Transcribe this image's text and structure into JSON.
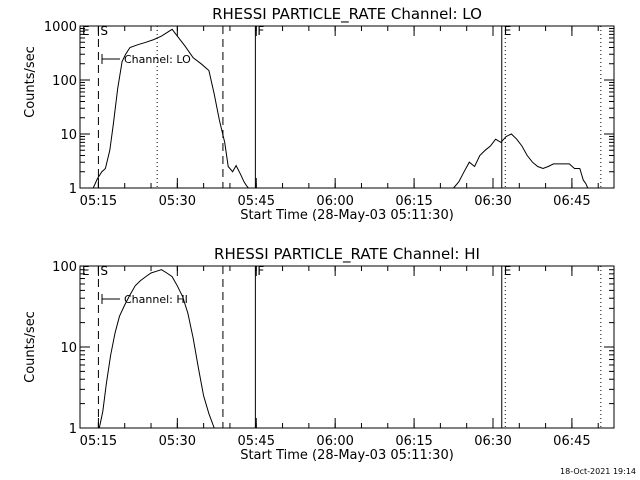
{
  "footer": {
    "timestamp": "18-Oct-2021 19:14"
  },
  "chart_data": [
    {
      "type": "line",
      "title": "RHESSI PARTICLE_RATE Channel: LO",
      "xlabel": "Start Time (28-May-03 05:11:30)",
      "ylabel": "Counts/sec",
      "y_scale": "log",
      "ylim": [
        1,
        1000
      ],
      "xlim": [
        "05:11:30",
        "06:53:00"
      ],
      "y_ticks": [
        "1",
        "10",
        "100",
        "1000"
      ],
      "x_ticks": [
        "05:15",
        "05:30",
        "05:45",
        "06:00",
        "06:15",
        "06:30",
        "06:45"
      ],
      "legend": "Channel: LO",
      "markers": [
        {
          "label": "E",
          "time": "05:11:30",
          "style": "dashed"
        },
        {
          "label": "S",
          "time": "05:15:00",
          "style": "dashed"
        },
        {
          "label": "",
          "time": "05:38:40",
          "style": "dashed"
        },
        {
          "label": "F",
          "time": "05:44:50",
          "style": "solid"
        },
        {
          "label": "E",
          "time": "06:31:40",
          "style": "solid"
        }
      ],
      "dotted_lines": [
        "05:26:10",
        "06:32:20",
        "06:50:30"
      ],
      "series": [
        {
          "x": [
            "05:11:30",
            "05:14:00",
            "05:14:50",
            "05:15:40",
            "05:16:20",
            "05:17:10",
            "05:17:50",
            "05:18:40",
            "05:19:30",
            "05:20:10",
            "05:21:00",
            "05:22:30",
            "05:24:00",
            "05:25:30",
            "05:27:00",
            "05:28:00",
            "05:29:00",
            "05:30:00",
            "05:31:30",
            "05:33:00",
            "05:34:30",
            "05:36:00",
            "05:37:00",
            "05:38:00",
            "05:39:00",
            "05:39:40",
            "05:40:30",
            "05:41:10",
            "05:42:00",
            "05:42:40",
            "05:43:10",
            "05:43:30"
          ],
          "y": [
            null,
            1,
            1.5,
            2,
            2.3,
            5,
            15,
            70,
            220,
            300,
            400,
            450,
            500,
            560,
            650,
            750,
            870,
            650,
            420,
            260,
            200,
            150,
            55,
            18,
            7,
            2.5,
            2,
            2.6,
            1.8,
            1.3,
            1.1,
            1
          ],
          "style": "solid"
        },
        {
          "x": [
            "06:22:30",
            "06:23:30",
            "06:24:30",
            "06:25:30",
            "06:26:30",
            "06:27:30",
            "06:28:30",
            "06:29:30",
            "06:30:30",
            "06:31:30",
            "06:32:30",
            "06:33:30",
            "06:34:30",
            "06:35:30",
            "06:36:30",
            "06:37:30",
            "06:38:30",
            "06:39:30",
            "06:40:30",
            "06:41:30",
            "06:42:30",
            "06:43:30",
            "06:44:30",
            "06:45:30",
            "06:46:30",
            "06:47:10",
            "06:47:40",
            "06:48:00"
          ],
          "y": [
            1,
            1.3,
            2,
            3,
            2.5,
            4,
            5,
            6,
            8,
            7,
            9,
            10,
            8,
            6,
            4,
            3,
            2.5,
            2.3,
            2.5,
            2.8,
            2.8,
            2.8,
            2.8,
            2.3,
            2.3,
            1.4,
            1.2,
            1
          ],
          "style": "solid"
        }
      ]
    },
    {
      "type": "line",
      "title": "RHESSI PARTICLE_RATE Channel: HI",
      "xlabel": "Start Time (28-May-03 05:11:30)",
      "ylabel": "Counts/sec",
      "y_scale": "log",
      "ylim": [
        1,
        100
      ],
      "xlim": [
        "05:11:30",
        "06:53:00"
      ],
      "y_ticks": [
        "1",
        "10",
        "100"
      ],
      "x_ticks": [
        "05:15",
        "05:30",
        "05:45",
        "06:00",
        "06:15",
        "06:30",
        "06:45"
      ],
      "legend": "Channel: HI",
      "markers": [
        {
          "label": "E",
          "time": "05:11:30",
          "style": "dashed"
        },
        {
          "label": "S",
          "time": "05:15:00",
          "style": "dashed"
        },
        {
          "label": "",
          "time": "05:38:40",
          "style": "dashed"
        },
        {
          "label": "F",
          "time": "05:44:50",
          "style": "solid"
        },
        {
          "label": "E",
          "time": "06:31:40",
          "style": "solid"
        }
      ],
      "dotted_lines": [
        "06:32:20",
        "06:50:30"
      ],
      "series": [
        {
          "x": [
            "05:15:10",
            "05:15:50",
            "05:16:30",
            "05:17:20",
            "05:18:10",
            "05:19:00",
            "05:20:00",
            "05:21:00",
            "05:22:00",
            "05:23:00",
            "05:24:00",
            "05:25:00",
            "05:26:00",
            "05:27:00",
            "05:28:00",
            "05:29:00",
            "05:30:00",
            "05:31:00",
            "05:32:00",
            "05:33:00",
            "05:34:00",
            "05:35:00",
            "05:36:00",
            "05:37:00"
          ],
          "y": [
            1,
            1.6,
            3.5,
            8,
            15,
            24,
            33,
            44,
            57,
            66,
            74,
            82,
            86,
            90,
            82,
            74,
            57,
            42,
            26,
            13,
            5.5,
            2.5,
            1.5,
            1
          ],
          "style": "solid"
        }
      ]
    }
  ]
}
